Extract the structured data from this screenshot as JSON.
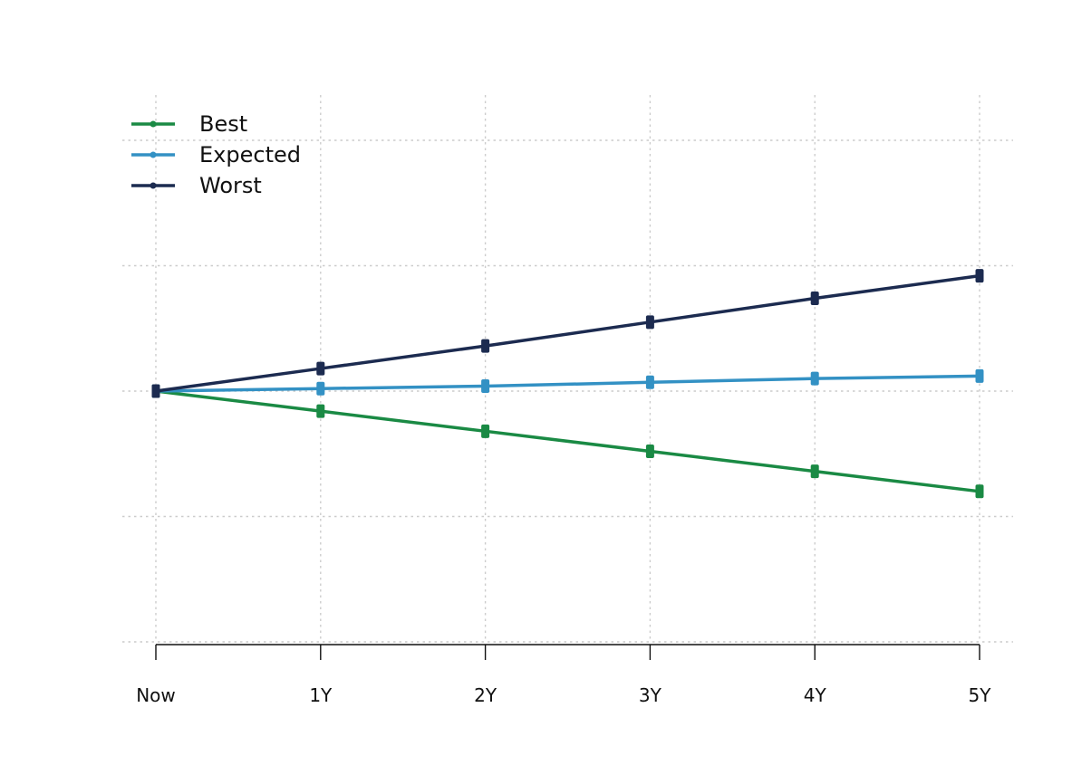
{
  "chart_data": {
    "type": "line",
    "title": "",
    "xlabel": "",
    "ylabel": "",
    "categories": [
      "Now",
      "1Y",
      "2Y",
      "3Y",
      "4Y",
      "5Y"
    ],
    "ylim": [
      -2,
      2
    ],
    "grid": true,
    "legend_position": "top-left",
    "series": [
      {
        "name": "Best",
        "color": "#1a8a44",
        "values": [
          0,
          -0.16,
          -0.32,
          -0.48,
          -0.64,
          -0.8
        ]
      },
      {
        "name": "Expected",
        "color": "#3391c4",
        "values": [
          0,
          0.02,
          0.04,
          0.07,
          0.1,
          0.12
        ]
      },
      {
        "name": "Worst",
        "color": "#1c2b50",
        "values": [
          0,
          0.18,
          0.36,
          0.55,
          0.74,
          0.92
        ]
      }
    ]
  }
}
